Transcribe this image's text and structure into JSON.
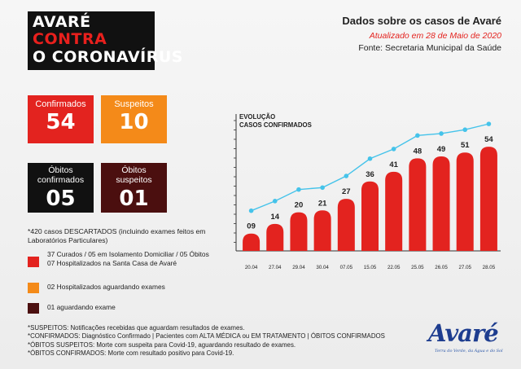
{
  "title": {
    "line1": "AVARÉ",
    "line2": "CONTRA",
    "line3": "O CORONAVÍRUS"
  },
  "header": {
    "heading": "Dados sobre os casos de Avaré",
    "updated": "Atualizado em 28 de Maio de 2020",
    "source": "Fonte: Secretaria Municipal da Saúde"
  },
  "stats": {
    "confirmed": {
      "label": "Confirmados",
      "value": "54"
    },
    "suspected": {
      "label": "Suspeitos",
      "value": "10"
    },
    "deaths_confirmed": {
      "label1": "Óbitos",
      "label2": "confirmados",
      "value": "05"
    },
    "deaths_suspected": {
      "label1": "Óbitos",
      "label2": "suspeitos",
      "value": "01"
    }
  },
  "discarded": "*420 casos DESCARTADOS (incluindo exames feitos em Laboratórios Particulares)",
  "legend": {
    "red_line1": "37 Curados / 05 em Isolamento Domiciliar / 05 Óbitos",
    "red_line2": "07 Hospitalizados na Santa Casa de Avaré",
    "orange": "02 Hospitalizados aguardando exames",
    "darkred": "01 aguardando exame"
  },
  "notes": [
    "*SUSPEITOS: Notificações recebidas que aguardam resultados de exames.",
    "*CONFIRMADOS: Diagnóstico Confirmado | Pacientes com ALTA MÉDICA ou EM TRATAMENTO | ÓBITOS CONFIRMADOS",
    "*ÓBITOS SUSPEITOS: Morte com suspeita para Covid-19, aguardando resultado de exames.",
    "*ÓBITOS CONFIRMADOS: Morte com resultado positivo para Covid-19."
  ],
  "logo": {
    "word": "Avaré",
    "tagline": "Terra do Verde, da Água e do Sol"
  },
  "colors": {
    "red": "#e3231f",
    "orange": "#f48a19",
    "black": "#111111",
    "darkred": "#4b0f0f",
    "line": "#45c3ea"
  },
  "chart_data": {
    "type": "bar",
    "title_line1": "EVOLUÇÃO",
    "title_line2": "CASOS CONFIRMADOS",
    "categories": [
      "20.04",
      "27.04",
      "29.04",
      "30.04",
      "07.05",
      "15.05",
      "22.05",
      "25.05",
      "26.05",
      "27.05",
      "28.05"
    ],
    "values": [
      9,
      14,
      20,
      21,
      27,
      36,
      41,
      48,
      49,
      51,
      54
    ],
    "labels": [
      "09",
      "14",
      "20",
      "21",
      "27",
      "36",
      "41",
      "48",
      "49",
      "51",
      "54"
    ],
    "overlay": "line",
    "ylim": [
      0,
      60
    ],
    "grid": false,
    "legend": "none"
  }
}
